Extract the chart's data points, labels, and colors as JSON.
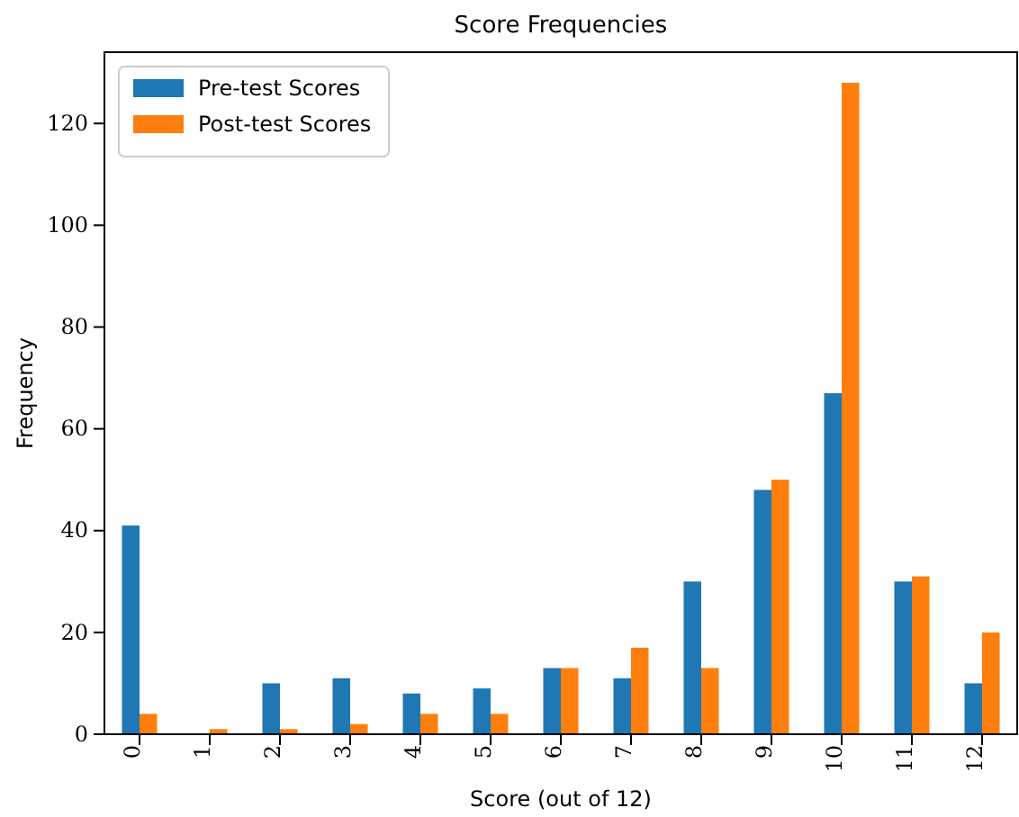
{
  "chart_data": {
    "type": "bar",
    "title": "Score Frequencies",
    "xlabel": "Score (out of 12)",
    "ylabel": "Frequency",
    "categories": [
      "0",
      "1",
      "2",
      "3",
      "4",
      "5",
      "6",
      "7",
      "8",
      "9",
      "10",
      "11",
      "12"
    ],
    "series": [
      {
        "name": "Pre-test Scores",
        "color": "#1f77b4",
        "values": [
          41,
          0,
          10,
          11,
          8,
          9,
          13,
          11,
          30,
          48,
          67,
          30,
          10
        ]
      },
      {
        "name": "Post-test Scores",
        "color": "#ff7f0e",
        "values": [
          4,
          1,
          1,
          2,
          4,
          4,
          13,
          17,
          13,
          50,
          128,
          31,
          20
        ]
      }
    ],
    "ylim": [
      0,
      134
    ],
    "yticks": [
      0,
      20,
      40,
      60,
      80,
      100,
      120
    ],
    "legend": "top left"
  }
}
